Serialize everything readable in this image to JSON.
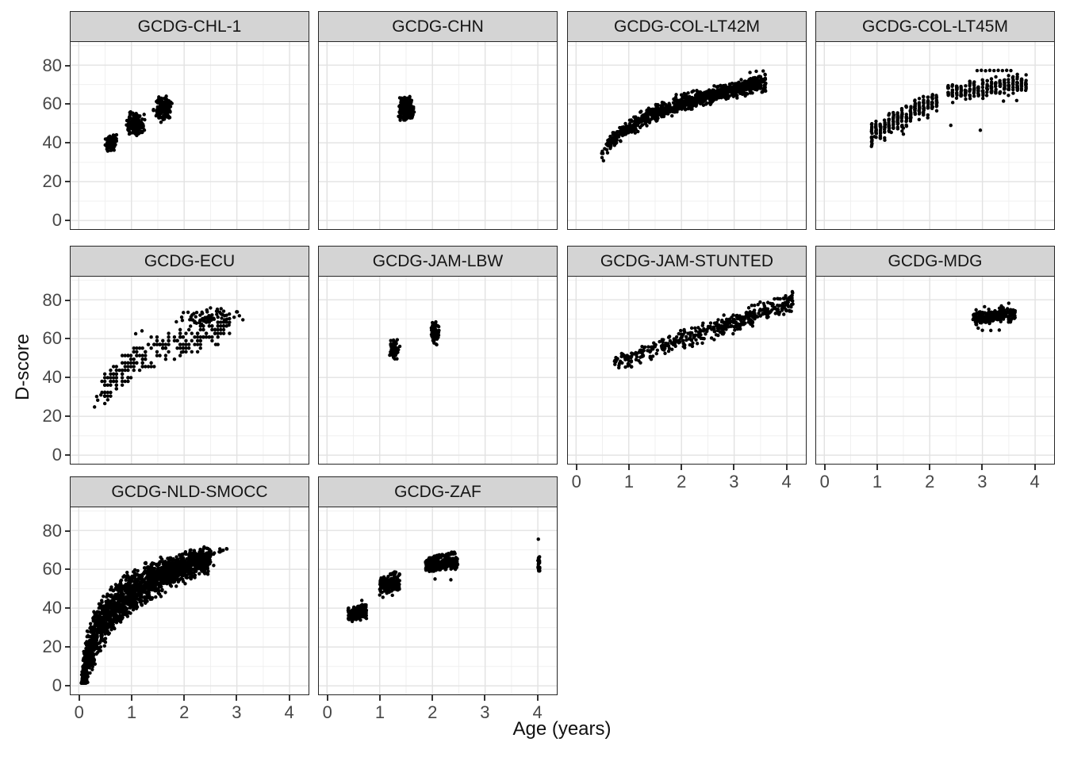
{
  "figure": {
    "y_axis_title": "D-score",
    "x_axis_title": "Age (years)",
    "colors": {
      "strip_bg": "#d4d4d4",
      "strip_border": "#262626",
      "panel_border": "#262626",
      "grid_major": "#e2e2e2",
      "grid_minor": "#f0f0f0",
      "point": "#000000",
      "tick_text": "#474747",
      "title_text": "#111111"
    }
  },
  "chart_data": {
    "type": "scatter",
    "title": "",
    "xlabel": "Age (years)",
    "ylabel": "D-score",
    "xlim": [
      0,
      4
    ],
    "ylim": [
      0,
      80
    ],
    "x_ticks": [
      0,
      1,
      2,
      3,
      4
    ],
    "y_ticks": [
      0,
      20,
      40,
      60,
      80
    ],
    "x_minor_gridlines": [
      0.5,
      1.5,
      2.5,
      3.5
    ],
    "y_minor_gridlines": [
      10,
      30,
      50,
      70,
      90
    ],
    "x_draw_range": [
      -0.155,
      4.36
    ],
    "y_draw_range": [
      -4.4,
      91.9
    ],
    "grid": true,
    "legend": "none",
    "facet_layout": "3 rows x 4 cols, 10 panels",
    "panels": [
      {
        "label": "GCDG-CHL-1",
        "row": 0,
        "col": 0,
        "y_axis": true,
        "x_axis": false,
        "clusters": [
          {
            "kind": "blob",
            "cx": 0.62,
            "cy": 40,
            "rx": 0.055,
            "ry": 2.2,
            "n": 90
          },
          {
            "kind": "blob",
            "cx": 1.08,
            "cy": 50,
            "rx": 0.08,
            "ry": 2.7,
            "n": 160
          },
          {
            "kind": "blob",
            "cx": 1.6,
            "cy": 58,
            "rx": 0.085,
            "ry": 2.9,
            "n": 150
          }
        ],
        "outliers": [
          [
            0.55,
            35.8
          ],
          [
            1.1,
            43.8
          ],
          [
            0.97,
            55.6
          ],
          [
            1.24,
            54.6
          ],
          [
            1.56,
            50.6
          ],
          [
            1.52,
            63.6
          ],
          [
            1.66,
            64.0
          ]
        ]
      },
      {
        "label": "GCDG-CHN",
        "row": 0,
        "col": 1,
        "y_axis": false,
        "x_axis": false,
        "clusters": [
          {
            "kind": "blob",
            "cx": 1.5,
            "cy": 57.5,
            "rx": 0.07,
            "ry": 2.8,
            "n": 320
          }
        ],
        "outliers": [
          [
            1.39,
            52.5
          ],
          [
            1.62,
            53.5
          ],
          [
            1.57,
            63.8
          ]
        ]
      },
      {
        "label": "GCDG-COL-LT42M",
        "row": 0,
        "col": 2,
        "y_axis": false,
        "x_axis": false,
        "clusters": [
          {
            "kind": "band",
            "x0": 0.48,
            "x1": 3.6,
            "model": "log",
            "a": 47.7,
            "b": 18,
            "sd": 2.2,
            "n": 950,
            "xpow": 0.8
          }
        ],
        "outliers": [
          [
            1.9,
            64.8
          ],
          [
            2.02,
            63.4
          ],
          [
            0.52,
            30.8
          ],
          [
            3.42,
            76.8
          ],
          [
            3.55,
            77.0
          ],
          [
            3.3,
            76.2
          ]
        ]
      },
      {
        "label": "GCDG-COL-LT45M",
        "row": 0,
        "col": 3,
        "y_axis": false,
        "x_axis": false,
        "clusters": [
          {
            "kind": "stripes",
            "x0": 0.9,
            "x1": 2.2,
            "step": 0.082,
            "per": 15,
            "a": 32.5,
            "b": 13.8,
            "sd": 3.2
          },
          {
            "kind": "stripes",
            "x0": 2.35,
            "x1": 3.85,
            "step": 0.082,
            "per": 12,
            "a": 58.2,
            "b": 3.3,
            "sd": 2.5
          }
        ],
        "outliers": [
          [
            2.9,
            77.2
          ],
          [
            2.98,
            77.3
          ],
          [
            3.06,
            77.1
          ],
          [
            3.14,
            77.3
          ],
          [
            3.22,
            77.2
          ],
          [
            3.3,
            77.3
          ],
          [
            3.38,
            77.2
          ],
          [
            3.46,
            77.3
          ],
          [
            3.54,
            77.2
          ],
          [
            2.96,
            46.5
          ],
          [
            1.5,
            44.5
          ],
          [
            1.5,
            47.6
          ],
          [
            1.27,
            45.4
          ],
          [
            0.95,
            43.2
          ],
          [
            3.4,
            61.5
          ],
          [
            3.65,
            61.8
          ],
          [
            2.4,
            49
          ]
        ]
      },
      {
        "label": "GCDG-ECU",
        "row": 1,
        "col": 0,
        "y_axis": true,
        "x_axis": false,
        "clusters": [
          {
            "kind": "band",
            "x0": 0.45,
            "x1": 2.85,
            "model": "log",
            "a": 46.5,
            "b": 19,
            "sd": 4,
            "n": 250,
            "qx": 0.055,
            "qy": 1.9
          },
          {
            "kind": "blob",
            "cx": 2.5,
            "cy": 70.5,
            "rx": 0.3,
            "ry": 2.3,
            "n": 70
          }
        ],
        "outliers": [
          [
            0.3,
            24.8
          ],
          [
            0.36,
            28.3
          ],
          [
            0.42,
            31
          ],
          [
            0.34,
            30.2
          ],
          [
            1.08,
            62.5
          ],
          [
            1.2,
            64
          ],
          [
            2.6,
            57
          ],
          [
            1.95,
            53
          ],
          [
            2.7,
            75.4
          ],
          [
            2.5,
            75.8
          ]
        ]
      },
      {
        "label": "GCDG-JAM-LBW",
        "row": 1,
        "col": 1,
        "y_axis": false,
        "x_axis": false,
        "clusters": [
          {
            "kind": "blob",
            "cx": 1.28,
            "cy": 54.5,
            "rx": 0.038,
            "ry": 2.4,
            "n": 85
          },
          {
            "kind": "blob",
            "cx": 2.05,
            "cy": 63,
            "rx": 0.034,
            "ry": 2.8,
            "n": 95
          }
        ],
        "outliers": [
          [
            1.19,
            51.5
          ],
          [
            1.38,
            56
          ],
          [
            2.07,
            57.2
          ],
          [
            2.0,
            68.2
          ]
        ]
      },
      {
        "label": "GCDG-JAM-STUNTED",
        "row": 1,
        "col": 2,
        "y_axis": false,
        "x_axis": true,
        "clusters": [
          {
            "kind": "band",
            "x0": 0.73,
            "x1": 4.12,
            "model": "lin",
            "a": 40.3,
            "b": 9.5,
            "sd": 2.5,
            "n": 440,
            "xpow": 0.88
          }
        ],
        "outliers": [
          [
            2.62,
            59.5
          ],
          [
            2.98,
            62.5
          ],
          [
            3.35,
            66.5
          ],
          [
            2.3,
            57.5
          ]
        ]
      },
      {
        "label": "GCDG-MDG",
        "row": 1,
        "col": 3,
        "y_axis": false,
        "x_axis": true,
        "clusters": [
          {
            "kind": "band",
            "x0": 2.82,
            "x1": 3.62,
            "model": "lin",
            "a": 66,
            "b": 1.8,
            "sd": 2,
            "n": 250
          }
        ],
        "outliers": [
          [
            3.0,
            64.3
          ],
          [
            3.16,
            64.2
          ],
          [
            3.32,
            64.4
          ],
          [
            2.92,
            65.4
          ],
          [
            3.5,
            78.2
          ],
          [
            3.36,
            76.8
          ],
          [
            3.04,
            76.4
          ],
          [
            2.88,
            74.8
          ]
        ]
      },
      {
        "label": "GCDG-NLD-SMOCC",
        "row": 2,
        "col": 0,
        "y_axis": true,
        "x_axis": true,
        "clusters": [
          {
            "kind": "band",
            "x0": 0.05,
            "x1": 2.5,
            "model": "log",
            "a": 48,
            "b": 19,
            "sd": 7,
            "sd1": 3,
            "n": 1900,
            "xpow": 1.25,
            "ymin": 1.5
          },
          {
            "kind": "streak",
            "x0": 2.1,
            "y0": 65,
            "x1": 2.82,
            "y1": 70.6,
            "n": 45,
            "sd": 0.7
          }
        ],
        "outliers": [
          [
            2.45,
            57.5
          ],
          [
            2.56,
            62
          ],
          [
            2.36,
            61
          ],
          [
            1.56,
            46
          ],
          [
            1.36,
            44.6
          ],
          [
            2.02,
            52.6
          ]
        ]
      },
      {
        "label": "GCDG-ZAF",
        "row": 2,
        "col": 1,
        "y_axis": false,
        "x_axis": true,
        "clusters": [
          {
            "kind": "band",
            "x0": 0.4,
            "x1": 0.75,
            "model": "lin",
            "a": 33.5,
            "b": 7.0,
            "sd": 1.9,
            "n": 180
          },
          {
            "kind": "band",
            "x0": 1.0,
            "x1": 1.38,
            "model": "lin",
            "a": 47,
            "b": 4.5,
            "sd": 2.1,
            "n": 220
          },
          {
            "kind": "streak",
            "x0": 1.17,
            "y0": 57.2,
            "x1": 1.31,
            "y1": 58.4,
            "n": 12,
            "sd": 0.35
          },
          {
            "kind": "band",
            "x0": 1.87,
            "x1": 2.48,
            "model": "lin",
            "a": 58.5,
            "b": 2.0,
            "sd": 1.8,
            "n": 280
          },
          {
            "kind": "streak",
            "x0": 1.95,
            "y0": 65.8,
            "x1": 2.43,
            "y1": 68.3,
            "n": 40,
            "sd": 0.5
          },
          {
            "kind": "vline",
            "x": 4.02,
            "y0": 58.7,
            "y1": 66.9,
            "n": 24,
            "jx": 0.018
          }
        ],
        "outliers": [
          [
            0.66,
            44
          ],
          [
            1.06,
            45.6
          ],
          [
            1.24,
            46.6
          ],
          [
            2.05,
            55
          ],
          [
            2.35,
            54.6
          ],
          [
            4.01,
            75.5
          ],
          [
            1.0,
            46.8
          ]
        ]
      }
    ]
  }
}
